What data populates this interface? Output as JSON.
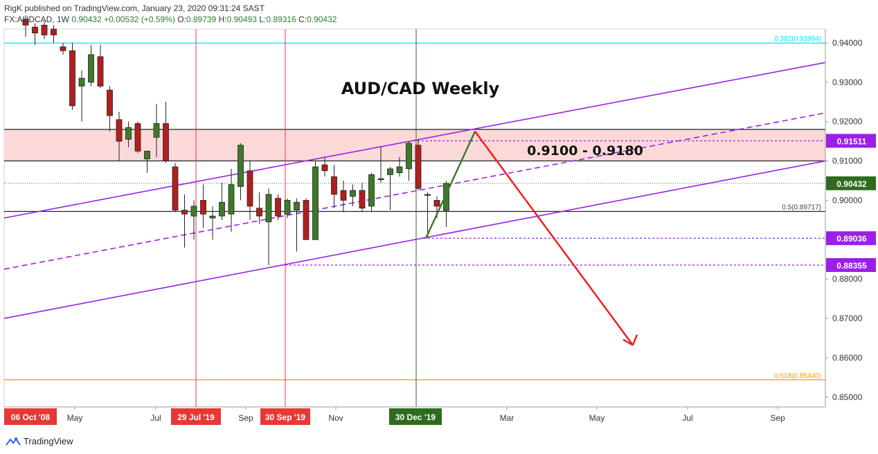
{
  "header": {
    "published": "RigK published on TradingView.com, January 23, 2020 09:31:24 SAST",
    "author": "RigK",
    "symbol_line": "FX:AUDCAD, 1W",
    "last": "0.90432",
    "change": "+0.00532 (+0.59%)",
    "o_label": "O:",
    "o_value": "0.89739",
    "h_label": "H:",
    "h_value": "0.90493",
    "l_label": "L:",
    "l_value": "0.89316",
    "c_label": "C:",
    "c_value": "0.90432"
  },
  "footer": {
    "brand": "TradingView"
  },
  "colors": {
    "up": "#3d7a2a",
    "down": "#b11f1f",
    "channel": "#9b1fe8",
    "vline": "#e53935",
    "green_vline": "#2e6b1f",
    "zone": "#fbd9d9",
    "fib382": "#00e5ee",
    "fib618": "#ff9800",
    "arrow": "#ef1c1c",
    "green_leg": "#3d7a2a"
  },
  "chart_data": {
    "type": "candlestick",
    "title": "AUD/CAD Weekly",
    "zone_label": "0.9100 - 0.9180",
    "ylim": [
      0.8475,
      0.9435
    ],
    "y_ticks": [
      "0.94000",
      "0.93000",
      "0.92000",
      "0.91000",
      "0.90000",
      "0.89000",
      "0.88000",
      "0.87000",
      "0.86000",
      "0.85000"
    ],
    "x_labels": [
      "May",
      "Jul",
      "Sep",
      "Nov",
      "Mar",
      "May",
      "Jul",
      "Sep"
    ],
    "x_markers": [
      {
        "label": "06 Oct '08",
        "color": "red"
      },
      {
        "label": "29 Jul '19",
        "color": "red"
      },
      {
        "label": "30 Sep '19",
        "color": "red"
      },
      {
        "label": "30 Dec '19",
        "color": "green"
      }
    ],
    "price_tags": [
      {
        "label": "0.91511",
        "value": 0.91511,
        "color": "purple"
      },
      {
        "label": "0.90432",
        "value": 0.90432,
        "color": "green"
      },
      {
        "label": "0.89036",
        "value": 0.89036,
        "color": "purple"
      },
      {
        "label": "0.88355",
        "value": 0.88355,
        "color": "purple"
      }
    ],
    "fib_levels": [
      {
        "label": "0.382(0.93994)",
        "value": 0.93994
      },
      {
        "label": "0.5(0.89717)",
        "value": 0.89717
      },
      {
        "label": "0.618(0.85440)",
        "value": 0.8544
      }
    ],
    "zone": [
      0.91,
      0.918
    ],
    "candles": [
      {
        "o": 0.946,
        "h": 0.947,
        "l": 0.9415,
        "c": 0.9445
      },
      {
        "o": 0.944,
        "h": 0.945,
        "l": 0.9395,
        "c": 0.9425
      },
      {
        "o": 0.9445,
        "h": 0.9455,
        "l": 0.941,
        "c": 0.942
      },
      {
        "o": 0.9435,
        "h": 0.9445,
        "l": 0.94,
        "c": 0.942
      },
      {
        "o": 0.939,
        "h": 0.94,
        "l": 0.937,
        "c": 0.938
      },
      {
        "o": 0.938,
        "h": 0.94,
        "l": 0.923,
        "c": 0.924
      },
      {
        "o": 0.929,
        "h": 0.933,
        "l": 0.92,
        "c": 0.931
      },
      {
        "o": 0.93,
        "h": 0.9395,
        "l": 0.929,
        "c": 0.937
      },
      {
        "o": 0.9365,
        "h": 0.9395,
        "l": 0.9285,
        "c": 0.929
      },
      {
        "o": 0.928,
        "h": 0.929,
        "l": 0.9175,
        "c": 0.9215
      },
      {
        "o": 0.9205,
        "h": 0.9225,
        "l": 0.91,
        "c": 0.915
      },
      {
        "o": 0.9155,
        "h": 0.92,
        "l": 0.9135,
        "c": 0.9185
      },
      {
        "o": 0.9195,
        "h": 0.92,
        "l": 0.912,
        "c": 0.9125
      },
      {
        "o": 0.9105,
        "h": 0.9125,
        "l": 0.907,
        "c": 0.9125
      },
      {
        "o": 0.916,
        "h": 0.9245,
        "l": 0.911,
        "c": 0.9195
      },
      {
        "o": 0.9195,
        "h": 0.925,
        "l": 0.9095,
        "c": 0.91
      },
      {
        "o": 0.9085,
        "h": 0.9095,
        "l": 0.897,
        "c": 0.8975
      },
      {
        "o": 0.8975,
        "h": 0.9015,
        "l": 0.888,
        "c": 0.8965
      },
      {
        "o": 0.896,
        "h": 0.9,
        "l": 0.89,
        "c": 0.8985
      },
      {
        "o": 0.9,
        "h": 0.904,
        "l": 0.893,
        "c": 0.8965
      },
      {
        "o": 0.8955,
        "h": 0.8985,
        "l": 0.89,
        "c": 0.896
      },
      {
        "o": 0.896,
        "h": 0.9045,
        "l": 0.895,
        "c": 0.8995
      },
      {
        "o": 0.8965,
        "h": 0.908,
        "l": 0.892,
        "c": 0.904
      },
      {
        "o": 0.9035,
        "h": 0.9145,
        "l": 0.9,
        "c": 0.914
      },
      {
        "o": 0.9075,
        "h": 0.91,
        "l": 0.895,
        "c": 0.8985
      },
      {
        "o": 0.898,
        "h": 0.902,
        "l": 0.894,
        "c": 0.896
      },
      {
        "o": 0.8945,
        "h": 0.903,
        "l": 0.8835,
        "c": 0.9015
      },
      {
        "o": 0.9005,
        "h": 0.9015,
        "l": 0.895,
        "c": 0.896
      },
      {
        "o": 0.8965,
        "h": 0.9005,
        "l": 0.8955,
        "c": 0.9
      },
      {
        "o": 0.8975,
        "h": 0.9005,
        "l": 0.887,
        "c": 0.8995
      },
      {
        "o": 0.9,
        "h": 0.9005,
        "l": 0.89,
        "c": 0.89
      },
      {
        "o": 0.89,
        "h": 0.91,
        "l": 0.89,
        "c": 0.9085
      },
      {
        "o": 0.909,
        "h": 0.911,
        "l": 0.906,
        "c": 0.9075
      },
      {
        "o": 0.906,
        "h": 0.909,
        "l": 0.898,
        "c": 0.9015
      },
      {
        "o": 0.9025,
        "h": 0.905,
        "l": 0.897,
        "c": 0.9
      },
      {
        "o": 0.901,
        "h": 0.904,
        "l": 0.8985,
        "c": 0.9025
      },
      {
        "o": 0.9025,
        "h": 0.9045,
        "l": 0.897,
        "c": 0.898
      },
      {
        "o": 0.8985,
        "h": 0.907,
        "l": 0.897,
        "c": 0.9065
      },
      {
        "o": 0.9055,
        "h": 0.9135,
        "l": 0.9045,
        "c": 0.9055
      },
      {
        "o": 0.9065,
        "h": 0.9085,
        "l": 0.8975,
        "c": 0.908
      },
      {
        "o": 0.907,
        "h": 0.911,
        "l": 0.906,
        "c": 0.9085
      },
      {
        "o": 0.908,
        "h": 0.915,
        "l": 0.905,
        "c": 0.9145
      },
      {
        "o": 0.914,
        "h": 0.9155,
        "l": 0.9025,
        "c": 0.903
      },
      {
        "o": 0.9015,
        "h": 0.902,
        "l": 0.8905,
        "c": 0.9015
      },
      {
        "o": 0.9,
        "h": 0.901,
        "l": 0.8955,
        "c": 0.8985
      },
      {
        "o": 0.8974,
        "h": 0.9049,
        "l": 0.8932,
        "c": 0.9043
      }
    ]
  }
}
